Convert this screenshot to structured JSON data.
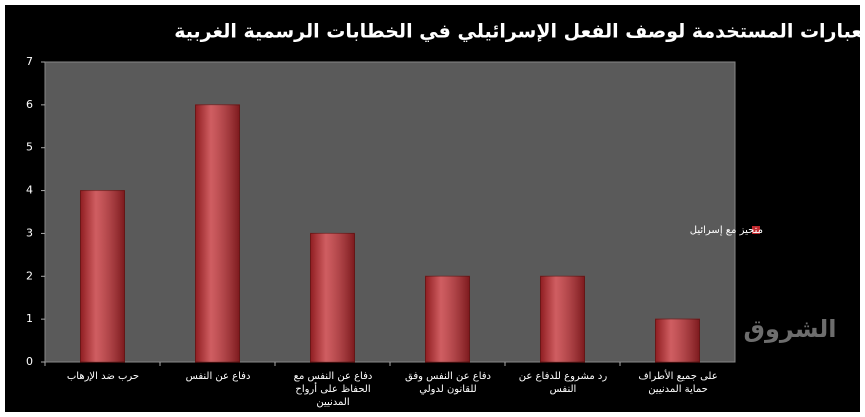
{
  "chart_data": {
    "type": "bar",
    "title": "العبارات المستخدمة لوصف الفعل الإسرائيلي في الخطابات الرسمية الغربية",
    "categories": [
      "حرب ضد الإرهاب",
      "دفاع عن النفس",
      "دفاع عن النفس مع الحفاظ على أرواح المدنيين",
      "دفاع عن النفس وفق للقانون لدولي",
      "رد مشروع للدفاع عن النفس",
      "على جميع الأطراف حماية المدنيين"
    ],
    "series": [
      {
        "name": "متحيز مع إسرائيل",
        "color": "#c0282d",
        "values": [
          4,
          6,
          3,
          2,
          2,
          1
        ]
      }
    ],
    "ylim": [
      0,
      7
    ],
    "yticks": [
      0,
      1,
      2,
      3,
      4,
      5,
      6,
      7
    ],
    "grid": false,
    "legend": "right",
    "watermark": "الشروق"
  }
}
